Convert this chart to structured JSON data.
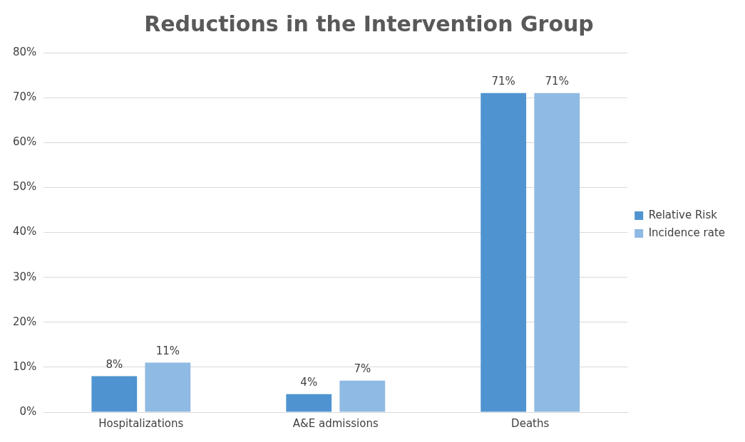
{
  "chart_data": {
    "type": "bar",
    "title": "Reductions in the Intervention Group",
    "categories": [
      "Hospitalizations",
      "A&E admissions",
      "Deaths"
    ],
    "series": [
      {
        "name": "Relative Risk",
        "color": "#4f94d0",
        "values": [
          8,
          4,
          71
        ],
        "value_labels": [
          "8%",
          "4%",
          "71%"
        ]
      },
      {
        "name": "Incidence rate",
        "color": "#8fbae3",
        "values": [
          11,
          7,
          71
        ],
        "value_labels": [
          "11%",
          "7%",
          "71%"
        ]
      }
    ],
    "ylim": [
      0,
      80
    ],
    "yticks": [
      {
        "value": 0,
        "label": "0%"
      },
      {
        "value": 10,
        "label": "10%"
      },
      {
        "value": 20,
        "label": "20%"
      },
      {
        "value": 30,
        "label": "30%"
      },
      {
        "value": 40,
        "label": "40%"
      },
      {
        "value": 50,
        "label": "50%"
      },
      {
        "value": 60,
        "label": "60%"
      },
      {
        "value": 70,
        "label": "70%"
      },
      {
        "value": 80,
        "label": "80%"
      }
    ],
    "grid": "y",
    "legend": "right"
  }
}
